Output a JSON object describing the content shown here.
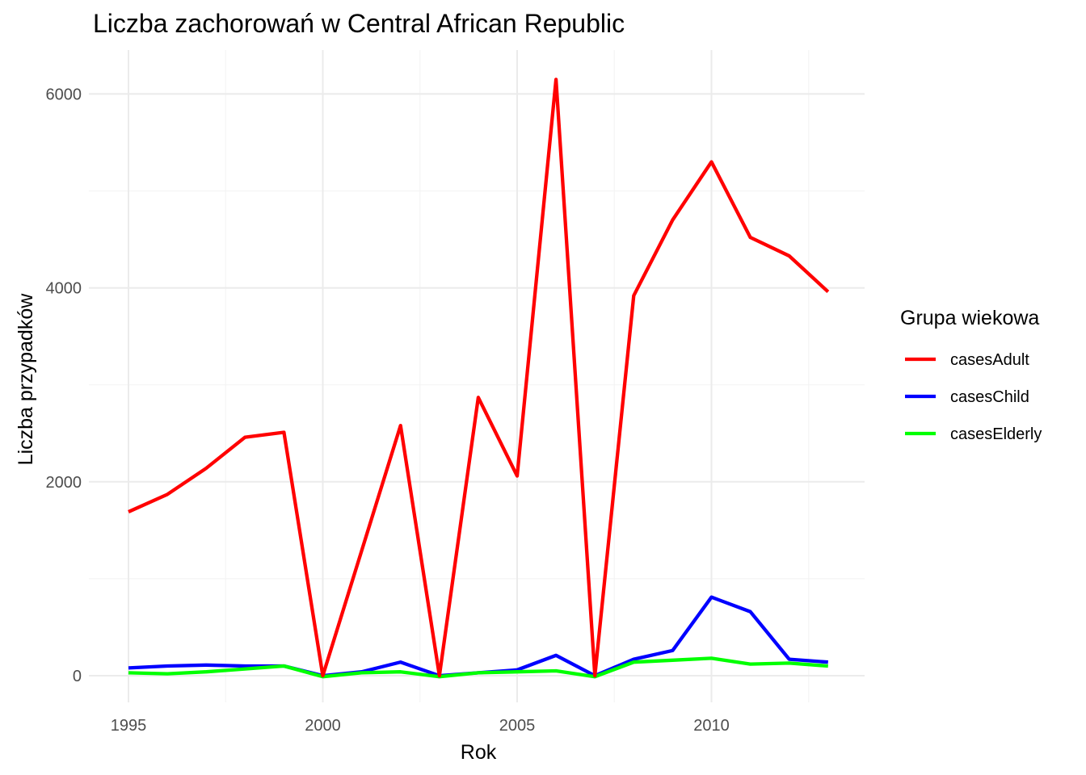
{
  "chart_data": {
    "type": "line",
    "title": "Liczba zachorowań w Central African Republic",
    "xlabel": "Rok",
    "ylabel": "Liczba przypadków",
    "xlim": [
      1995,
      2013
    ],
    "ylim": [
      0,
      6000
    ],
    "x_ticks": [
      "1995",
      "2000",
      "2005",
      "2010"
    ],
    "y_ticks": [
      "0",
      "2000",
      "4000",
      "6000"
    ],
    "grid": true,
    "legend": {
      "title": "Grupa wiekowa",
      "position": "right"
    },
    "x": [
      1995,
      1996,
      1997,
      1998,
      1999,
      2000,
      2001,
      2002,
      2003,
      2004,
      2005,
      2006,
      2007,
      2008,
      2009,
      2010,
      2011,
      2012,
      2013
    ],
    "series": [
      {
        "name": "casesAdult",
        "color": "#ff0000",
        "values": [
          1690,
          1870,
          2140,
          2460,
          2510,
          0,
          1290,
          2580,
          0,
          2870,
          2060,
          6150,
          0,
          3920,
          4700,
          5300,
          4520,
          4330,
          3960
        ]
      },
      {
        "name": "casesChild",
        "color": "#0000ff",
        "values": [
          80,
          100,
          110,
          100,
          100,
          0,
          40,
          140,
          0,
          30,
          60,
          210,
          0,
          170,
          260,
          810,
          660,
          170,
          140
        ]
      },
      {
        "name": "casesElderly",
        "color": "#00ff00",
        "values": [
          30,
          20,
          40,
          70,
          100,
          -10,
          30,
          40,
          -10,
          30,
          40,
          50,
          -10,
          140,
          160,
          180,
          120,
          130,
          100
        ]
      }
    ]
  }
}
